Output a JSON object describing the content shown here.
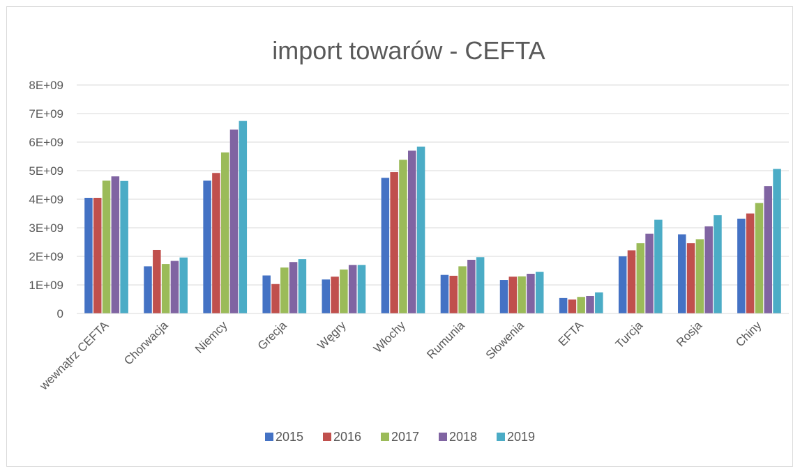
{
  "chart_data": {
    "type": "bar",
    "title": "import towarów - CEFTA",
    "xlabel": "",
    "ylabel": "",
    "ylim": [
      0,
      8000000000
    ],
    "y_ticks": [
      {
        "value": 0,
        "label": "0"
      },
      {
        "value": 1000000000,
        "label": "1E+09"
      },
      {
        "value": 2000000000,
        "label": "2E+09"
      },
      {
        "value": 3000000000,
        "label": "3E+09"
      },
      {
        "value": 4000000000,
        "label": "4E+09"
      },
      {
        "value": 5000000000,
        "label": "5E+09"
      },
      {
        "value": 6000000000,
        "label": "6E+09"
      },
      {
        "value": 7000000000,
        "label": "7E+09"
      },
      {
        "value": 8000000000,
        "label": "8E+09"
      }
    ],
    "grid": true,
    "legend_position": "bottom",
    "categories": [
      "wewnątrz CEFTA",
      "Chorwacja",
      "Niemcy",
      "Grecja",
      "Węgry",
      "Włochy",
      "Rumunia",
      "Słowenia",
      "EFTA",
      "Turcja",
      "Rosja",
      "Chiny"
    ],
    "series": [
      {
        "name": "2015",
        "color": "#4472c4",
        "values": [
          4050000000,
          1650000000,
          4650000000,
          1330000000,
          1190000000,
          4750000000,
          1350000000,
          1170000000,
          540000000,
          2000000000,
          2770000000,
          3320000000
        ]
      },
      {
        "name": "2016",
        "color": "#c0504d",
        "values": [
          4050000000,
          2220000000,
          4920000000,
          1030000000,
          1290000000,
          4950000000,
          1320000000,
          1290000000,
          490000000,
          2210000000,
          2460000000,
          3500000000
        ]
      },
      {
        "name": "2017",
        "color": "#9bbb59",
        "values": [
          4650000000,
          1730000000,
          5640000000,
          1610000000,
          1540000000,
          5380000000,
          1650000000,
          1300000000,
          580000000,
          2460000000,
          2600000000,
          3870000000
        ]
      },
      {
        "name": "2018",
        "color": "#8064a2",
        "values": [
          4800000000,
          1840000000,
          6440000000,
          1800000000,
          1700000000,
          5700000000,
          1880000000,
          1390000000,
          610000000,
          2790000000,
          3050000000,
          4460000000
        ]
      },
      {
        "name": "2019",
        "color": "#4bacc6",
        "values": [
          4640000000,
          1960000000,
          6740000000,
          1900000000,
          1700000000,
          5840000000,
          1970000000,
          1460000000,
          740000000,
          3280000000,
          3440000000,
          5060000000
        ]
      }
    ]
  }
}
